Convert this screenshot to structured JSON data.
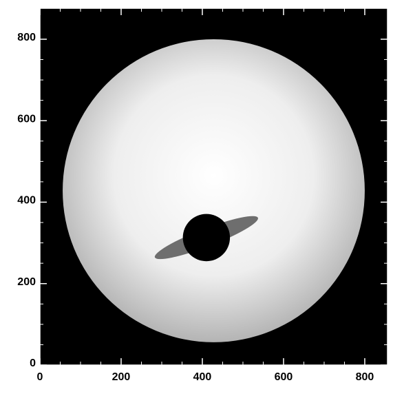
{
  "chart_data": {
    "type": "image",
    "xlim": [
      0,
      856
    ],
    "ylim": [
      0,
      876
    ],
    "xticks": [
      0,
      200,
      400,
      600,
      800
    ],
    "yticks": [
      0,
      200,
      400,
      600,
      800
    ],
    "star": {
      "x": 428,
      "y": 428,
      "r": 372
    },
    "planet": {
      "x": 410,
      "y": 313,
      "r": 58
    },
    "ring": {
      "rx": 136,
      "ry": 22,
      "angle": -21
    }
  }
}
